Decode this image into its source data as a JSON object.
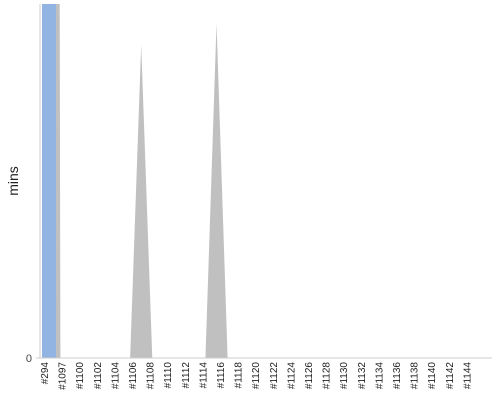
{
  "chart_data": {
    "type": "area",
    "title": "",
    "xlabel": "",
    "ylabel": "mins",
    "y_tick_labels": [
      "0"
    ],
    "categories": [
      "#294",
      "#1097",
      "#1100",
      "#1102",
      "#1104",
      "#1106",
      "#1108",
      "#1110",
      "#1112",
      "#1114",
      "#1116",
      "#1118",
      "#1120",
      "#1122",
      "#1124",
      "#1126",
      "#1128",
      "#1130",
      "#1132",
      "#1134",
      "#1136",
      "#1138",
      "#1140",
      "#1142",
      "#1144"
    ],
    "highlight": {
      "category_index": 0,
      "color": "#92b4e3",
      "fill_fraction": 1.0
    },
    "area_series": {
      "color": "#c0c0c0",
      "points": [
        {
          "x": 0.0,
          "y": 1.0
        },
        {
          "x": 0.58,
          "y": 1.0
        },
        {
          "x": 0.62,
          "y": 0
        },
        {
          "x": 4.58,
          "y": 0
        },
        {
          "x": 5.21,
          "y": 0.885
        },
        {
          "x": 5.84,
          "y": 0
        },
        {
          "x": 8.86,
          "y": 0
        },
        {
          "x": 9.49,
          "y": 0.945
        },
        {
          "x": 10.12,
          "y": 0
        },
        {
          "x": 24.0,
          "y": 0
        }
      ]
    },
    "ylim": [
      0,
      1.0
    ],
    "grid": false,
    "legend": "none"
  }
}
